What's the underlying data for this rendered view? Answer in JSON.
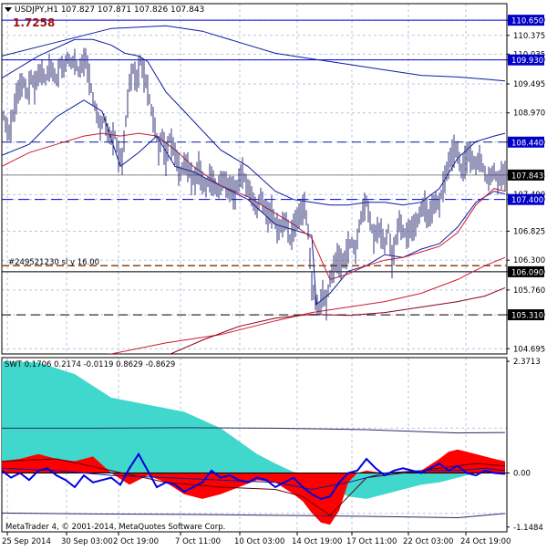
{
  "window": {
    "title_text": "USDJPY,H1  107.827 107.871 107.826 107.843",
    "big_value": "1.7258",
    "collapse_glyph": "triangle-down"
  },
  "order_label": "#249521230 sl y 16.00",
  "osc_header": "SWT 0.1706 0.2174 -0.0119 0.8629 -0.8629",
  "copyright": "MetaTrader 4, © 2001-2014, MetaQuotes Software Corp.",
  "colors": {
    "grid": "#b7c9dc",
    "candle": "#33337a",
    "blue_line": "#0000e0",
    "navy_ma": "#0a1ca0",
    "red_ma": "#d01a30",
    "dark_red_ma": "#8a0018",
    "price_tag_bg": "#0000c8",
    "current_tag_bg": "#000000",
    "cyan_fill": "#40d8cc",
    "red_fill": "#ff0000",
    "brown_dash": "#8b4513"
  },
  "chart_data": [
    {
      "type": "line",
      "title": "USDJPY,H1",
      "y_ticks": [
        "110.650",
        "110.375",
        "110.035",
        "109.930",
        "109.495",
        "108.970",
        "108.440",
        "107.843",
        "107.490",
        "107.400",
        "106.825",
        "106.300",
        "106.090",
        "105.760",
        "105.310",
        "104.695"
      ],
      "x_ticks": [
        "25 Sep 2014",
        "30 Sep 03:00",
        "2 Oct 19:00",
        "7 Oct 11:00",
        "10 Oct 03:00",
        "14 Oct 19:00",
        "17 Oct 11:00",
        "22 Oct 03:00",
        "24 Oct 19:00"
      ],
      "ylim": [
        104.6,
        110.95
      ],
      "grid": true,
      "ohlc_last": {
        "open": 107.827,
        "high": 107.871,
        "low": 107.826,
        "close": 107.843
      },
      "price_levels": [
        {
          "value": 110.65,
          "label": "110.650",
          "style": "solid",
          "color": "blue"
        },
        {
          "value": 109.93,
          "label": "109.930",
          "style": "solid",
          "color": "blue"
        },
        {
          "value": 108.44,
          "label": "108.440",
          "style": "dashed",
          "color": "navy"
        },
        {
          "value": 107.843,
          "label": "107.843",
          "style": "current",
          "color": "black"
        },
        {
          "value": 107.4,
          "label": "107.400",
          "style": "dashed",
          "color": "blue"
        },
        {
          "value": 106.2,
          "label": "",
          "style": "dashed",
          "color": "brown"
        },
        {
          "value": 106.09,
          "label": "106.090",
          "style": "solid",
          "color": "black"
        },
        {
          "value": 105.31,
          "label": "105.310",
          "style": "dashed",
          "color": "black"
        }
      ],
      "series": [
        {
          "role": "price",
          "x": [
            0,
            4,
            8,
            12,
            16,
            20,
            24,
            28,
            32,
            36,
            40,
            44,
            48,
            52,
            56,
            60,
            64,
            68,
            72,
            76,
            80,
            84,
            88,
            92,
            96,
            100,
            104,
            108,
            112,
            116,
            120,
            124,
            128,
            132,
            136,
            140,
            144,
            148,
            152,
            156,
            160,
            164,
            168,
            172,
            176,
            180,
            184,
            188,
            192,
            196,
            200,
            204,
            208,
            212,
            216,
            220,
            224,
            228,
            232,
            236,
            240,
            244,
            248,
            252,
            256,
            260,
            264,
            268,
            272,
            276,
            280,
            284,
            288,
            292,
            296,
            300,
            304,
            308,
            312,
            316,
            320,
            324,
            328,
            332,
            336,
            340,
            344,
            348,
            352,
            356,
            360,
            364,
            368,
            372,
            376,
            380,
            384,
            388,
            392,
            396,
            400,
            404,
            408,
            412,
            416,
            420,
            424,
            428,
            432,
            436,
            440,
            444,
            448,
            452,
            456,
            460,
            464,
            468,
            472,
            476,
            480,
            484,
            488,
            492,
            496,
            500,
            504,
            508,
            512,
            516,
            520,
            524,
            528,
            532,
            536,
            540,
            544,
            548,
            552
          ],
          "y": [
            109.05,
            108.75,
            108.6,
            108.9,
            109.25,
            109.45,
            109.5,
            109.3,
            109.6,
            109.45,
            109.65,
            109.7,
            109.55,
            109.8,
            109.7,
            109.55,
            109.85,
            109.75,
            109.95,
            109.85,
            109.9,
            109.7,
            109.85,
            109.95,
            109.6,
            109.2,
            108.95,
            108.7,
            108.85,
            108.6,
            108.5,
            108.55,
            108.2,
            108.1,
            108.8,
            109.5,
            109.75,
            109.55,
            109.9,
            109.65,
            109.4,
            109.0,
            108.7,
            108.3,
            108.55,
            108.15,
            108.5,
            108.35,
            108.1,
            107.85,
            108.05,
            108.0,
            107.8,
            107.75,
            108.0,
            107.7,
            107.6,
            107.8,
            107.7,
            107.55,
            107.7,
            107.75,
            107.6,
            107.6,
            107.5,
            107.75,
            107.9,
            107.65,
            107.55,
            107.35,
            107.2,
            107.45,
            107.25,
            107.1,
            107.2,
            106.95,
            106.85,
            106.95,
            107.0,
            106.65,
            106.9,
            107.05,
            107.15,
            107.3,
            106.8,
            105.85,
            105.55,
            105.4,
            105.7,
            105.5,
            105.95,
            106.15,
            106.35,
            106.25,
            106.3,
            106.55,
            106.6,
            106.45,
            106.9,
            107.2,
            107.35,
            107.0,
            106.7,
            106.85,
            106.8,
            106.55,
            106.85,
            106.3,
            106.65,
            107.0,
            106.8,
            106.75,
            106.85,
            106.9,
            107.0,
            107.2,
            107.3,
            107.05,
            107.25,
            107.35,
            107.3,
            107.65,
            107.9,
            108.15,
            108.3,
            108.25,
            107.9,
            108.1,
            108.25,
            108.1,
            108.0,
            108.15,
            107.95,
            107.75,
            107.8,
            107.9,
            107.7,
            107.85,
            107.84
          ]
        },
        {
          "role": "bollinger-upper",
          "x": [
            0,
            40,
            80,
            100,
            120,
            135,
            150,
            160,
            180,
            200,
            240,
            270,
            300,
            320,
            340,
            360,
            380,
            400,
            420,
            440,
            460,
            480,
            500,
            520,
            540,
            552
          ],
          "y": [
            109.6,
            110.0,
            110.3,
            110.3,
            110.2,
            110.05,
            110.0,
            109.9,
            109.35,
            109.0,
            108.3,
            108.0,
            107.55,
            107.4,
            107.35,
            107.3,
            107.3,
            107.35,
            107.35,
            107.3,
            107.35,
            107.6,
            108.15,
            108.45,
            108.55,
            108.6
          ]
        },
        {
          "role": "bollinger-lower",
          "x": [
            0,
            30,
            60,
            90,
            110,
            130,
            150,
            170,
            190,
            210,
            240,
            270,
            300,
            320,
            340,
            345,
            360,
            380,
            400,
            420,
            440,
            460,
            480,
            500,
            520,
            540,
            552
          ],
          "y": [
            108.2,
            108.4,
            108.9,
            109.2,
            109.0,
            108.0,
            108.25,
            108.55,
            108.0,
            107.9,
            107.65,
            107.4,
            106.95,
            106.85,
            106.75,
            105.5,
            105.7,
            106.1,
            106.2,
            106.4,
            106.35,
            106.5,
            106.6,
            106.9,
            107.35,
            107.55,
            107.5
          ]
        },
        {
          "role": "ma-short-red",
          "x": [
            0,
            30,
            60,
            90,
            110,
            130,
            150,
            170,
            190,
            210,
            240,
            270,
            300,
            320,
            340,
            360,
            380,
            400,
            420,
            440,
            460,
            480,
            500,
            520,
            540,
            552
          ],
          "y": [
            108.0,
            108.25,
            108.4,
            108.55,
            108.6,
            108.55,
            108.6,
            108.55,
            108.3,
            108.0,
            107.65,
            107.45,
            107.15,
            106.95,
            106.7,
            105.95,
            106.05,
            106.2,
            106.3,
            106.35,
            106.45,
            106.55,
            106.8,
            107.3,
            107.6,
            107.55
          ]
        },
        {
          "role": "ma-mid-red",
          "x": [
            0,
            60,
            120,
            180,
            240,
            300,
            340,
            380,
            420,
            460,
            500,
            530,
            552
          ],
          "y": [
            104.45,
            104.5,
            104.6,
            104.8,
            104.95,
            105.2,
            105.35,
            105.45,
            105.55,
            105.7,
            105.95,
            106.2,
            106.35
          ]
        },
        {
          "role": "ma-long-red",
          "x": [
            185,
            220,
            260,
            300,
            340,
            380,
            420,
            460,
            500,
            530,
            552
          ],
          "y": [
            104.6,
            104.85,
            105.1,
            105.25,
            105.32,
            105.3,
            105.35,
            105.45,
            105.55,
            105.65,
            105.8
          ]
        },
        {
          "role": "ma-long-navy",
          "x": [
            0,
            60,
            120,
            180,
            220,
            260,
            300,
            340,
            380,
            420,
            460,
            500,
            530,
            552
          ],
          "y": [
            110.0,
            110.25,
            110.5,
            110.55,
            110.45,
            110.25,
            110.05,
            109.95,
            109.85,
            109.75,
            109.65,
            109.62,
            109.58,
            109.55
          ]
        }
      ]
    },
    {
      "type": "area",
      "title": "SWT",
      "header_values": [
        0.1706,
        0.2174,
        -0.0119,
        0.8629,
        -0.8629
      ],
      "y_ticks": [
        "2.3713",
        "0.00",
        "-1.1484"
      ],
      "ylim": [
        -1.25,
        2.45
      ],
      "series": [
        {
          "role": "cyan-fill",
          "x": [
            0,
            40,
            80,
            120,
            160,
            200,
            240,
            280,
            300,
            320,
            330,
            340,
            360,
            380,
            400,
            420,
            440,
            460,
            480,
            500,
            520,
            540,
            552
          ],
          "y": [
            2.37,
            2.35,
            2.1,
            1.6,
            1.45,
            1.3,
            0.95,
            0.4,
            0.2,
            0.02,
            0.0,
            0.0,
            -0.3,
            -0.5,
            -0.55,
            -0.45,
            -0.35,
            -0.25,
            -0.2,
            -0.1,
            0.0,
            0.05,
            0.05
          ]
        },
        {
          "role": "red-fill",
          "x": [
            0,
            20,
            40,
            60,
            80,
            100,
            120,
            140,
            160,
            180,
            200,
            220,
            240,
            260,
            280,
            300,
            320,
            330,
            340,
            350,
            360,
            370,
            380,
            390,
            400,
            410,
            420,
            440,
            460,
            480,
            490,
            500,
            510,
            520,
            530,
            540,
            552
          ],
          "y": [
            0.25,
            0.3,
            0.4,
            0.3,
            0.25,
            0.35,
            0.0,
            -0.25,
            -0.05,
            -0.2,
            -0.45,
            -0.55,
            -0.45,
            -0.3,
            -0.15,
            -0.2,
            -0.45,
            -0.6,
            -0.85,
            -1.05,
            -1.1,
            -0.8,
            -0.2,
            0.0,
            0.05,
            0.02,
            0.0,
            0.02,
            0.05,
            0.3,
            0.45,
            0.5,
            0.45,
            0.4,
            0.35,
            0.3,
            0.25
          ]
        },
        {
          "role": "blue-line",
          "x": [
            0,
            10,
            20,
            30,
            40,
            50,
            60,
            70,
            80,
            90,
            100,
            110,
            120,
            130,
            140,
            150,
            160,
            170,
            180,
            190,
            200,
            210,
            220,
            230,
            240,
            250,
            260,
            270,
            280,
            290,
            300,
            310,
            320,
            330,
            340,
            350,
            360,
            370,
            380,
            390,
            400,
            410,
            420,
            430,
            440,
            450,
            460,
            470,
            480,
            490,
            500,
            510,
            520,
            530,
            540,
            552
          ],
          "y": [
            0.05,
            -0.1,
            0.0,
            -0.15,
            0.05,
            0.1,
            -0.05,
            -0.15,
            -0.3,
            -0.05,
            -0.2,
            -0.15,
            -0.1,
            -0.25,
            0.1,
            0.4,
            0.05,
            -0.3,
            -0.2,
            -0.25,
            -0.4,
            -0.3,
            -0.2,
            0.05,
            -0.1,
            -0.05,
            -0.15,
            -0.2,
            -0.1,
            -0.15,
            -0.3,
            -0.2,
            -0.1,
            -0.3,
            -0.45,
            -0.55,
            -0.5,
            -0.2,
            0.0,
            0.05,
            0.3,
            0.1,
            -0.05,
            0.05,
            0.1,
            0.05,
            0.0,
            0.1,
            0.2,
            0.05,
            0.15,
            0.0,
            -0.05,
            0.05,
            0.0,
            -0.02
          ]
        },
        {
          "role": "upper-band",
          "x": [
            0,
            100,
            200,
            300,
            400,
            500,
            552
          ],
          "y": [
            0.95,
            0.95,
            0.96,
            0.95,
            0.92,
            0.85,
            0.86
          ]
        },
        {
          "role": "lower-band",
          "x": [
            0,
            100,
            200,
            300,
            400,
            500,
            552
          ],
          "y": [
            -0.85,
            -0.87,
            -0.88,
            -0.9,
            -0.92,
            -0.95,
            -0.86
          ]
        },
        {
          "role": "dark-red-signal",
          "x": [
            0,
            60,
            120,
            180,
            240,
            300,
            330,
            360,
            380,
            400,
            440,
            480,
            520,
            552
          ],
          "y": [
            0.25,
            0.3,
            0.05,
            -0.2,
            -0.3,
            -0.35,
            -0.5,
            -0.9,
            -0.5,
            -0.1,
            0.0,
            0.1,
            0.2,
            0.15
          ]
        },
        {
          "role": "navy-signal",
          "x": [
            0,
            60,
            120,
            180,
            240,
            300,
            340,
            380,
            420,
            460,
            500,
            530,
            552
          ],
          "y": [
            0.1,
            0.05,
            -0.05,
            -0.1,
            -0.15,
            -0.2,
            -0.35,
            -0.2,
            0.0,
            0.05,
            0.05,
            0.1,
            0.05
          ]
        }
      ]
    }
  ]
}
